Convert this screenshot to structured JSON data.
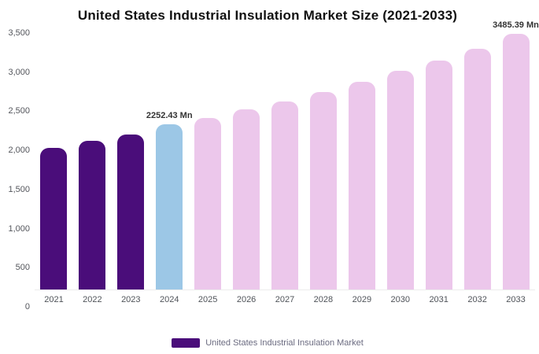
{
  "chart_data": {
    "type": "bar",
    "title": "United States Industrial Insulation Market Size (2021-2033)",
    "xlabel": "",
    "ylabel": "",
    "unit": "Mn",
    "ylim": [
      0,
      3500
    ],
    "grid": false,
    "legend_position": "bottom",
    "categories": [
      "2021",
      "2022",
      "2023",
      "2024",
      "2025",
      "2026",
      "2027",
      "2028",
      "2029",
      "2030",
      "2031",
      "2032",
      "2033"
    ],
    "values": [
      1930,
      2025,
      2110,
      2252.43,
      2340,
      2455,
      2570,
      2700,
      2835,
      2980,
      3125,
      3290,
      3485.39
    ],
    "bar_segments": [
      "historical",
      "historical",
      "historical",
      "current",
      "forecast",
      "forecast",
      "forecast",
      "forecast",
      "forecast",
      "forecast",
      "forecast",
      "forecast",
      "forecast"
    ],
    "colors": {
      "historical": "#4a0d7a",
      "current": "#9cc7e6",
      "forecast": "#ecc7eb"
    },
    "y_ticks": [
      {
        "value": 0,
        "label": "0"
      },
      {
        "value": 500,
        "label": "500"
      },
      {
        "value": 1000,
        "label": "1,000"
      },
      {
        "value": 1500,
        "label": "1,500"
      },
      {
        "value": 2000,
        "label": "2,000"
      },
      {
        "value": 2500,
        "label": "2,500"
      },
      {
        "value": 3000,
        "label": "3,000"
      },
      {
        "value": 3500,
        "label": "3,500"
      }
    ],
    "annotations": [
      {
        "category": "2024",
        "text": "2252.43 Mn"
      },
      {
        "category": "2033",
        "text": "3485.39 Mn"
      }
    ],
    "legend": [
      {
        "label": "United States Industrial Insulation Market",
        "color": "#4a0d7a"
      }
    ]
  }
}
